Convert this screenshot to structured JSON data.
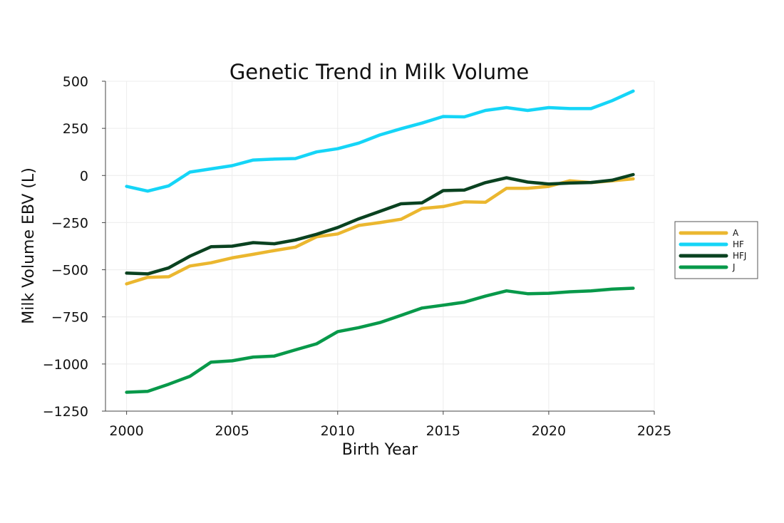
{
  "chart_data": {
    "type": "line",
    "title": "Genetic Trend in Milk Volume",
    "xlabel": "Birth Year",
    "ylabel": "Milk Volume EBV (L)",
    "xlim": [
      1999,
      2025
    ],
    "ylim": [
      -1250,
      500
    ],
    "xticks": [
      2000,
      2005,
      2010,
      2015,
      2020,
      2025
    ],
    "yticks": [
      500,
      250,
      0,
      -250,
      -500,
      -750,
      -1000,
      -1250
    ],
    "ytick_labels": [
      "500",
      "250",
      "0",
      "−250",
      "−500",
      "−750",
      "−1000",
      "−1250"
    ],
    "grid": true,
    "legend_position": "right",
    "x": [
      2000,
      2001,
      2002,
      2003,
      2004,
      2005,
      2006,
      2007,
      2008,
      2009,
      2010,
      2011,
      2012,
      2013,
      2014,
      2015,
      2016,
      2017,
      2018,
      2019,
      2020,
      2021,
      2022,
      2023,
      2024
    ],
    "series": [
      {
        "name": "A",
        "color": "#ebb72f",
        "values": [
          -575,
          -540,
          -537,
          -480,
          -463,
          -437,
          -418,
          -398,
          -380,
          -325,
          -310,
          -265,
          -250,
          -232,
          -175,
          -165,
          -140,
          -142,
          -68,
          -68,
          -58,
          -28,
          -38,
          -28,
          -18
        ]
      },
      {
        "name": "HF",
        "color": "#15d5f7",
        "values": [
          -58,
          -83,
          -55,
          18,
          35,
          52,
          82,
          87,
          90,
          125,
          142,
          172,
          215,
          248,
          278,
          313,
          311,
          345,
          360,
          345,
          360,
          355,
          355,
          397,
          448
        ]
      },
      {
        "name": "HFJ",
        "color": "#0a4220",
        "values": [
          -518,
          -522,
          -490,
          -428,
          -378,
          -375,
          -356,
          -362,
          -342,
          -312,
          -276,
          -230,
          -190,
          -150,
          -145,
          -80,
          -77,
          -38,
          -12,
          -35,
          -45,
          -40,
          -37,
          -25,
          5
        ]
      },
      {
        "name": "J",
        "color": "#08994a",
        "values": [
          -1150,
          -1145,
          -1107,
          -1065,
          -990,
          -983,
          -963,
          -958,
          -925,
          -893,
          -828,
          -807,
          -780,
          -742,
          -703,
          -688,
          -672,
          -640,
          -612,
          -627,
          -625,
          -617,
          -612,
          -603,
          -598
        ]
      }
    ]
  }
}
